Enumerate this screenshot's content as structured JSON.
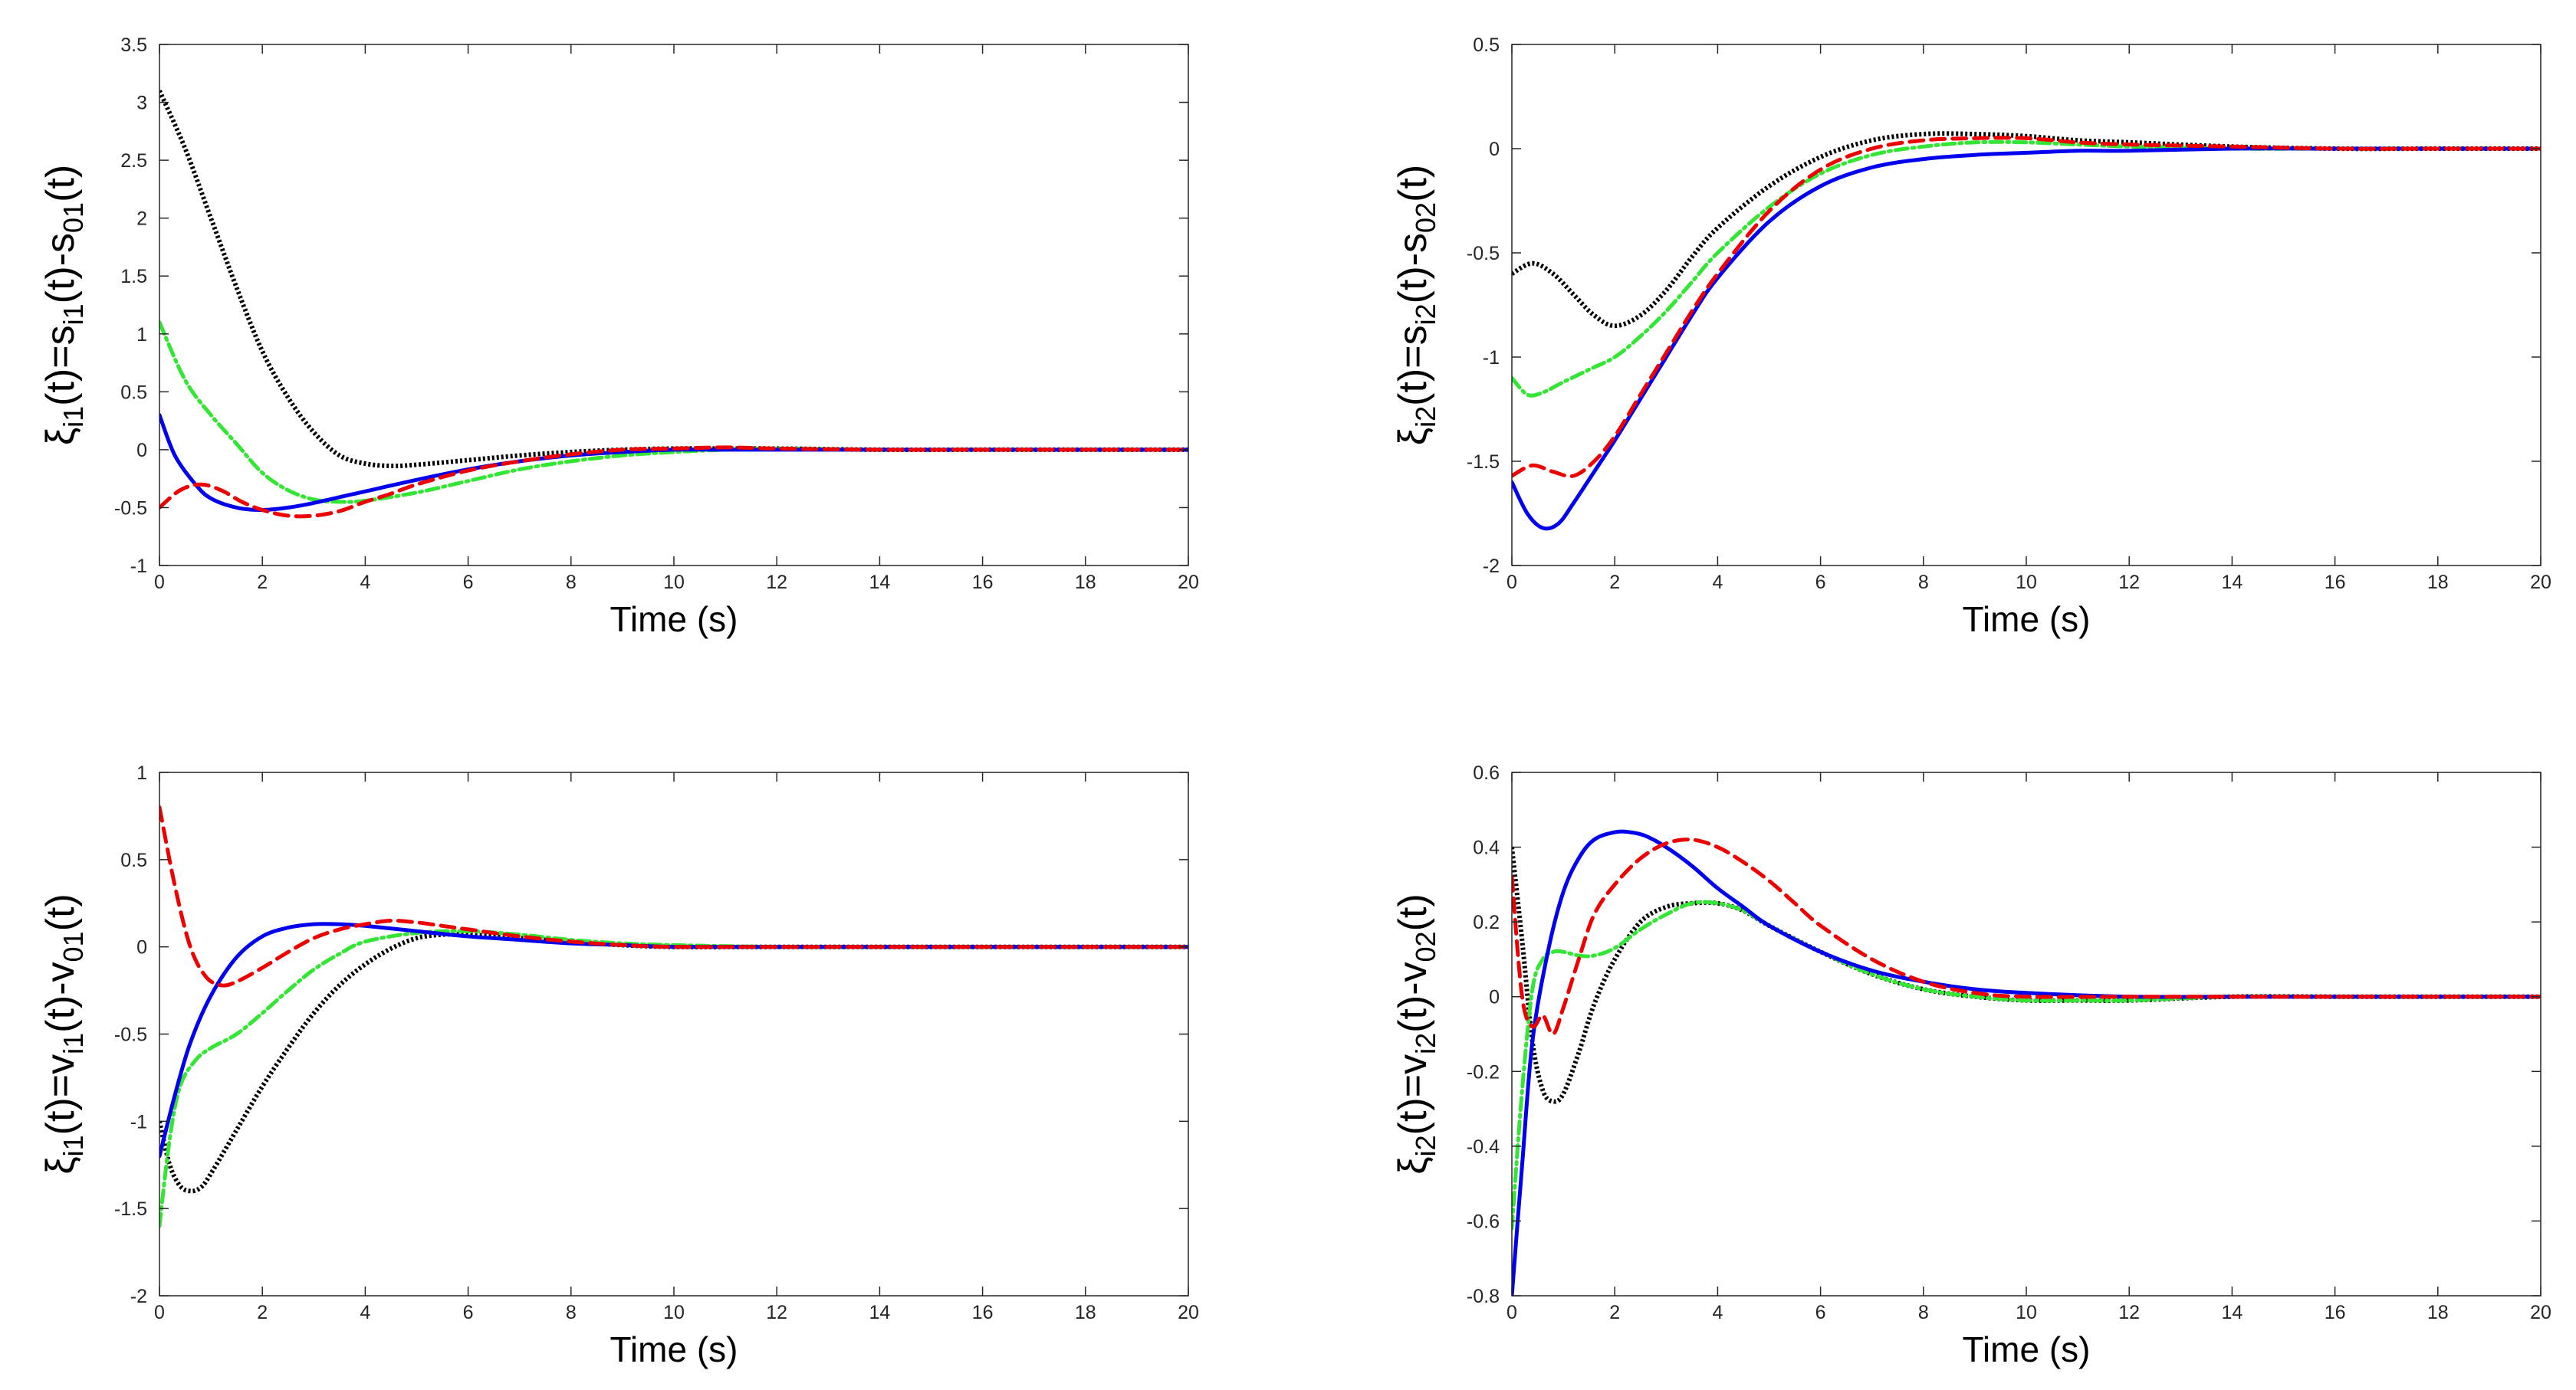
{
  "chart_data": [
    {
      "type": "line",
      "ylabel": {
        "xi": "ξ",
        "xi_sub": "i1",
        "mid": "(t)=s",
        "s_sub": "i1",
        "minus": "(t)-s",
        "s0_sub": "01",
        "end": "(t)"
      },
      "xlabel": "Time (s)",
      "xlim": [
        0,
        20
      ],
      "ylim": [
        -1,
        3.5
      ],
      "xticks": [
        "0",
        "2",
        "4",
        "6",
        "8",
        "10",
        "12",
        "14",
        "16",
        "18",
        "20"
      ],
      "yticks": [
        "-1",
        "-0.5",
        "0",
        "0.5",
        "1",
        "1.5",
        "2",
        "2.5",
        "3",
        "3.5"
      ],
      "series": [
        {
          "name": "black",
          "color": "#000000",
          "style": "dotted",
          "x": [
            0,
            0.5,
            1,
            1.5,
            2,
            2.5,
            3,
            3.5,
            4,
            4.5,
            5,
            6,
            7,
            8,
            9,
            10,
            11,
            12,
            14,
            16,
            18,
            20
          ],
          "y": [
            3.1,
            2.6,
            2.0,
            1.4,
            0.85,
            0.45,
            0.15,
            -0.05,
            -0.12,
            -0.14,
            -0.13,
            -0.09,
            -0.05,
            -0.02,
            0.0,
            0.01,
            0.01,
            0.01,
            0.0,
            0.0,
            0.0,
            0.0
          ]
        },
        {
          "name": "green",
          "color": "#33e633",
          "style": "dashdot",
          "x": [
            0,
            0.5,
            1,
            1.5,
            2,
            2.5,
            3,
            3.5,
            4,
            5,
            6,
            7,
            8,
            9,
            10,
            11,
            12,
            14,
            16,
            18,
            20
          ],
          "y": [
            1.1,
            0.6,
            0.3,
            0.05,
            -0.2,
            -0.35,
            -0.43,
            -0.45,
            -0.44,
            -0.37,
            -0.27,
            -0.17,
            -0.1,
            -0.05,
            -0.02,
            0.0,
            0.01,
            0.0,
            0.0,
            0.0,
            0.0
          ]
        },
        {
          "name": "blue",
          "color": "#0000ee",
          "style": "solid",
          "x": [
            0,
            0.3,
            0.7,
            1,
            1.5,
            2,
            2.5,
            3,
            3.5,
            4,
            5,
            6,
            7,
            8,
            9,
            10,
            11,
            12,
            14,
            16,
            18,
            20
          ],
          "y": [
            0.3,
            -0.05,
            -0.3,
            -0.42,
            -0.5,
            -0.52,
            -0.5,
            -0.46,
            -0.41,
            -0.36,
            -0.26,
            -0.17,
            -0.1,
            -0.05,
            -0.02,
            0.0,
            0.0,
            0.0,
            0.0,
            0.0,
            0.0,
            0.0
          ]
        },
        {
          "name": "red",
          "color": "#ee0000",
          "style": "dashed",
          "x": [
            0,
            0.4,
            0.8,
            1.2,
            1.6,
            2,
            2.5,
            3,
            3.5,
            4,
            4.5,
            5,
            6,
            7,
            8,
            9,
            10,
            11,
            12,
            14,
            16,
            18,
            20
          ],
          "y": [
            -0.5,
            -0.35,
            -0.3,
            -0.35,
            -0.45,
            -0.52,
            -0.57,
            -0.57,
            -0.53,
            -0.45,
            -0.38,
            -0.3,
            -0.18,
            -0.1,
            -0.04,
            0.0,
            0.01,
            0.02,
            0.01,
            0.0,
            0.0,
            0.0,
            0.0
          ]
        }
      ]
    },
    {
      "type": "line",
      "ylabel": {
        "xi": "ξ",
        "xi_sub": "i2",
        "mid": "(t)=s",
        "s_sub": "i2",
        "minus": "(t)-s",
        "s0_sub": "02",
        "end": "(t)"
      },
      "xlabel": "Time (s)",
      "xlim": [
        0,
        20
      ],
      "ylim": [
        -2,
        0.5
      ],
      "xticks": [
        "0",
        "2",
        "4",
        "6",
        "8",
        "10",
        "12",
        "14",
        "16",
        "18",
        "20"
      ],
      "yticks": [
        "-2",
        "-1.5",
        "-1",
        "-0.5",
        "0",
        "0.5"
      ],
      "series": [
        {
          "name": "black",
          "color": "#000000",
          "style": "dotted",
          "x": [
            0,
            0.4,
            0.8,
            1.2,
            1.6,
            2,
            2.5,
            3,
            3.5,
            4,
            5,
            6,
            7,
            8,
            9,
            10,
            11,
            12,
            14,
            16,
            18,
            20
          ],
          "y": [
            -0.6,
            -0.55,
            -0.6,
            -0.7,
            -0.8,
            -0.85,
            -0.8,
            -0.68,
            -0.52,
            -0.38,
            -0.18,
            -0.04,
            0.04,
            0.07,
            0.07,
            0.06,
            0.04,
            0.03,
            0.01,
            0.0,
            0.0,
            0.0
          ]
        },
        {
          "name": "green",
          "color": "#33e633",
          "style": "dashdot",
          "x": [
            0,
            0.3,
            0.6,
            1,
            1.5,
            2,
            2.5,
            3,
            3.5,
            4,
            5,
            6,
            7,
            8,
            9,
            10,
            11,
            12,
            14,
            16,
            18,
            20
          ],
          "y": [
            -1.1,
            -1.18,
            -1.17,
            -1.12,
            -1.06,
            -1.0,
            -0.9,
            -0.78,
            -0.64,
            -0.5,
            -0.28,
            -0.12,
            -0.03,
            0.01,
            0.03,
            0.03,
            0.02,
            0.01,
            0.0,
            0.0,
            0.0,
            0.0
          ]
        },
        {
          "name": "blue",
          "color": "#0000ee",
          "style": "solid",
          "x": [
            0,
            0.3,
            0.6,
            0.9,
            1.2,
            1.6,
            2,
            2.5,
            3,
            3.5,
            4,
            5,
            6,
            7,
            8,
            9,
            10,
            11,
            12,
            14,
            16,
            18,
            20
          ],
          "y": [
            -1.6,
            -1.75,
            -1.82,
            -1.8,
            -1.7,
            -1.55,
            -1.4,
            -1.2,
            -1.0,
            -0.8,
            -0.62,
            -0.35,
            -0.18,
            -0.09,
            -0.05,
            -0.03,
            -0.02,
            -0.01,
            -0.01,
            0.0,
            0.0,
            0.0,
            0.0
          ]
        },
        {
          "name": "red",
          "color": "#ee0000",
          "style": "dashed",
          "x": [
            0,
            0.4,
            0.8,
            1.2,
            1.6,
            2,
            2.5,
            3,
            3.5,
            4,
            5,
            6,
            7,
            8,
            9,
            10,
            11,
            12,
            14,
            16,
            18,
            20
          ],
          "y": [
            -1.57,
            -1.52,
            -1.55,
            -1.57,
            -1.5,
            -1.38,
            -1.18,
            -0.98,
            -0.78,
            -0.6,
            -0.3,
            -0.1,
            0.0,
            0.04,
            0.05,
            0.05,
            0.03,
            0.02,
            0.01,
            0.0,
            0.0,
            0.0
          ]
        }
      ]
    },
    {
      "type": "line",
      "ylabel": {
        "xi": "ξ",
        "xi_sub": "i1",
        "mid": "(t)=v",
        "s_sub": "i1",
        "minus": "(t)-v",
        "s0_sub": "01",
        "end": "(t)"
      },
      "xlabel": "Time (s)",
      "xlim": [
        0,
        20
      ],
      "ylim": [
        -2,
        1
      ],
      "xticks": [
        "0",
        "2",
        "4",
        "6",
        "8",
        "10",
        "12",
        "14",
        "16",
        "18",
        "20"
      ],
      "yticks": [
        "-2",
        "-1.5",
        "-1",
        "-0.5",
        "0",
        "0.5",
        "1"
      ],
      "series": [
        {
          "name": "black",
          "color": "#000000",
          "style": "dotted",
          "x": [
            0,
            0.2,
            0.4,
            0.6,
            0.8,
            1,
            1.5,
            2,
            2.5,
            3,
            3.5,
            4,
            4.5,
            5,
            5.5,
            6,
            7,
            8,
            9,
            10,
            12,
            14,
            16,
            18,
            20
          ],
          "y": [
            -1.0,
            -1.25,
            -1.37,
            -1.4,
            -1.38,
            -1.3,
            -1.05,
            -0.8,
            -0.58,
            -0.38,
            -0.22,
            -0.1,
            -0.01,
            0.05,
            0.07,
            0.07,
            0.05,
            0.03,
            0.01,
            0.0,
            0.0,
            0.0,
            0.0,
            0.0,
            0.0
          ]
        },
        {
          "name": "green",
          "color": "#33e633",
          "style": "dashdot",
          "x": [
            0,
            0.2,
            0.4,
            0.7,
            1,
            1.5,
            2,
            2.5,
            3,
            3.5,
            4,
            5,
            6,
            7,
            8,
            9,
            10,
            12,
            14,
            16,
            18,
            20
          ],
          "y": [
            -1.6,
            -1.1,
            -0.8,
            -0.65,
            -0.58,
            -0.5,
            -0.38,
            -0.25,
            -0.13,
            -0.04,
            0.03,
            0.08,
            0.09,
            0.07,
            0.04,
            0.02,
            0.01,
            0.0,
            0.0,
            0.0,
            0.0,
            0.0
          ]
        },
        {
          "name": "blue",
          "color": "#0000ee",
          "style": "solid",
          "x": [
            0,
            0.3,
            0.6,
            1,
            1.5,
            2,
            2.5,
            3,
            3.5,
            4,
            5,
            6,
            7,
            8,
            9,
            10,
            12,
            14,
            16,
            18,
            20
          ],
          "y": [
            -1.2,
            -0.85,
            -0.55,
            -0.28,
            -0.06,
            0.06,
            0.11,
            0.13,
            0.13,
            0.12,
            0.09,
            0.06,
            0.04,
            0.02,
            0.01,
            0.0,
            0.0,
            0.0,
            0.0,
            0.0,
            0.0
          ]
        },
        {
          "name": "red",
          "color": "#ee0000",
          "style": "dashed",
          "x": [
            0,
            0.3,
            0.6,
            0.9,
            1.2,
            1.5,
            2,
            2.5,
            3,
            3.5,
            4,
            4.5,
            5,
            5.5,
            6,
            7,
            8,
            9,
            10,
            12,
            14,
            16,
            18,
            20
          ],
          "y": [
            0.8,
            0.35,
            0.0,
            -0.17,
            -0.22,
            -0.2,
            -0.12,
            -0.03,
            0.05,
            0.1,
            0.13,
            0.15,
            0.14,
            0.12,
            0.1,
            0.06,
            0.03,
            0.01,
            0.0,
            0.0,
            0.0,
            0.0,
            0.0,
            0.0
          ]
        }
      ]
    },
    {
      "type": "line",
      "ylabel": {
        "xi": "ξ",
        "xi_sub": "i2",
        "mid": "(t)=v",
        "s_sub": "i2",
        "minus": "(t)-v",
        "s0_sub": "02",
        "end": "(t)"
      },
      "xlabel": "Time (s)",
      "xlim": [
        0,
        20
      ],
      "ylim": [
        -0.8,
        0.6
      ],
      "xticks": [
        "0",
        "2",
        "4",
        "6",
        "8",
        "10",
        "12",
        "14",
        "16",
        "18",
        "20"
      ],
      "yticks": [
        "-0.8",
        "-0.6",
        "-0.4",
        "-0.2",
        "0",
        "0.2",
        "0.4",
        "0.6"
      ],
      "series": [
        {
          "name": "black",
          "color": "#000000",
          "style": "dotted",
          "x": [
            0,
            0.2,
            0.4,
            0.6,
            0.8,
            1,
            1.3,
            1.6,
            2,
            2.5,
            3,
            3.5,
            4,
            4.5,
            5,
            6,
            7,
            8,
            9,
            10,
            11,
            12,
            14,
            16,
            18,
            20
          ],
          "y": [
            0.4,
            0.15,
            -0.12,
            -0.25,
            -0.28,
            -0.26,
            -0.15,
            -0.02,
            0.1,
            0.2,
            0.24,
            0.25,
            0.25,
            0.23,
            0.19,
            0.12,
            0.06,
            0.02,
            0.0,
            -0.01,
            -0.01,
            -0.01,
            0.0,
            0.0,
            0.0,
            0.0
          ]
        },
        {
          "name": "green",
          "color": "#33e633",
          "style": "dashdot",
          "x": [
            0,
            0.2,
            0.4,
            0.6,
            0.8,
            1,
            1.3,
            1.6,
            2,
            2.5,
            3,
            3.5,
            4,
            4.5,
            5,
            6,
            7,
            8,
            9,
            10,
            11,
            12,
            14,
            16,
            18,
            20
          ],
          "y": [
            -0.62,
            -0.25,
            0.02,
            0.1,
            0.12,
            0.12,
            0.11,
            0.11,
            0.13,
            0.18,
            0.22,
            0.25,
            0.25,
            0.23,
            0.19,
            0.12,
            0.06,
            0.02,
            0.0,
            -0.01,
            -0.01,
            -0.01,
            0.0,
            0.0,
            0.0,
            0.0
          ]
        },
        {
          "name": "blue",
          "color": "#0000ee",
          "style": "solid",
          "x": [
            0,
            0.2,
            0.4,
            0.7,
            1,
            1.3,
            1.6,
            2,
            2.3,
            2.6,
            3,
            3.5,
            4,
            4.5,
            5,
            6,
            7,
            8,
            9,
            10,
            12,
            14,
            16,
            18,
            20
          ],
          "y": [
            -0.8,
            -0.45,
            -0.12,
            0.12,
            0.28,
            0.37,
            0.42,
            0.44,
            0.44,
            0.43,
            0.4,
            0.35,
            0.29,
            0.24,
            0.19,
            0.12,
            0.07,
            0.04,
            0.02,
            0.01,
            0.0,
            0.0,
            0.0,
            0.0,
            0.0
          ]
        },
        {
          "name": "red",
          "color": "#ee0000",
          "style": "dashed",
          "x": [
            0,
            0.2,
            0.4,
            0.6,
            0.8,
            1,
            1.3,
            1.6,
            2,
            2.5,
            3,
            3.5,
            4,
            4.5,
            5,
            5.5,
            6,
            7,
            8,
            9,
            10,
            12,
            14,
            16,
            18,
            20
          ],
          "y": [
            0.32,
            0.0,
            -0.08,
            -0.05,
            -0.1,
            -0.03,
            0.1,
            0.22,
            0.3,
            0.37,
            0.41,
            0.42,
            0.4,
            0.36,
            0.31,
            0.25,
            0.19,
            0.1,
            0.04,
            0.01,
            0.0,
            0.0,
            0.0,
            0.0,
            0.0,
            0.0
          ]
        }
      ]
    }
  ]
}
